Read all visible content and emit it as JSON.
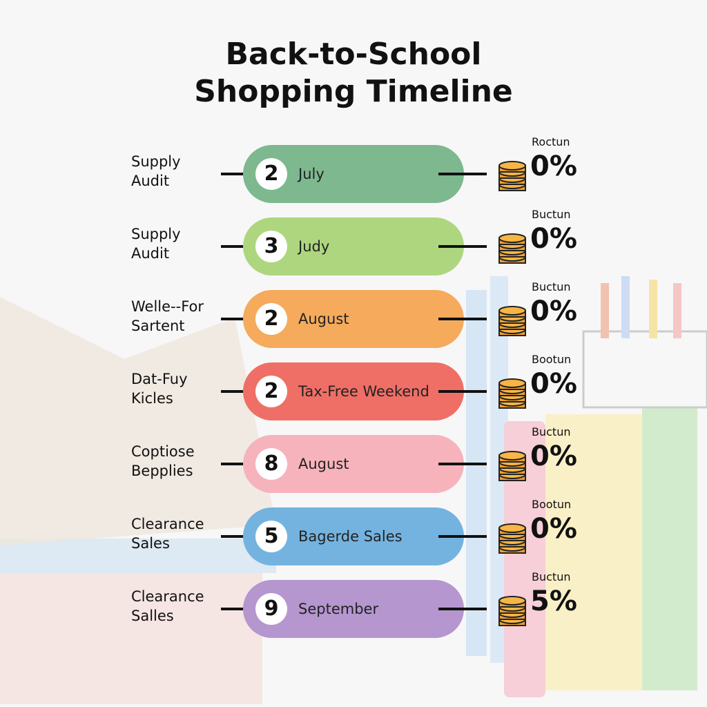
{
  "title": "Back-to-School Shopping Timeline",
  "rows": [
    {
      "label": "Supply Audit",
      "number": "2",
      "step": "July",
      "tag": "Roctun",
      "percent": "0%"
    },
    {
      "label": "Supply Audit",
      "number": "3",
      "step": "Judy",
      "tag": "Buctun",
      "percent": "0%"
    },
    {
      "label": "Welle--For Sartent",
      "number": "2",
      "step": "August",
      "tag": "Buctun",
      "percent": "0%"
    },
    {
      "label": "Dat-Fuy Kicles",
      "number": "2",
      "step": "Tax-Free Weekend",
      "tag": "Bootun",
      "percent": "0%"
    },
    {
      "label": "Coptiose Bepplies",
      "number": "8",
      "step": "August",
      "tag": "Buctun",
      "percent": "0%"
    },
    {
      "label": "Clearance Sales",
      "number": "5",
      "step": "Bagerde Sales",
      "tag": "Bootun",
      "percent": "0%"
    },
    {
      "label": "Clearance Salles",
      "number": "9",
      "step": "September",
      "tag": "Buctun",
      "percent": "5%"
    }
  ]
}
